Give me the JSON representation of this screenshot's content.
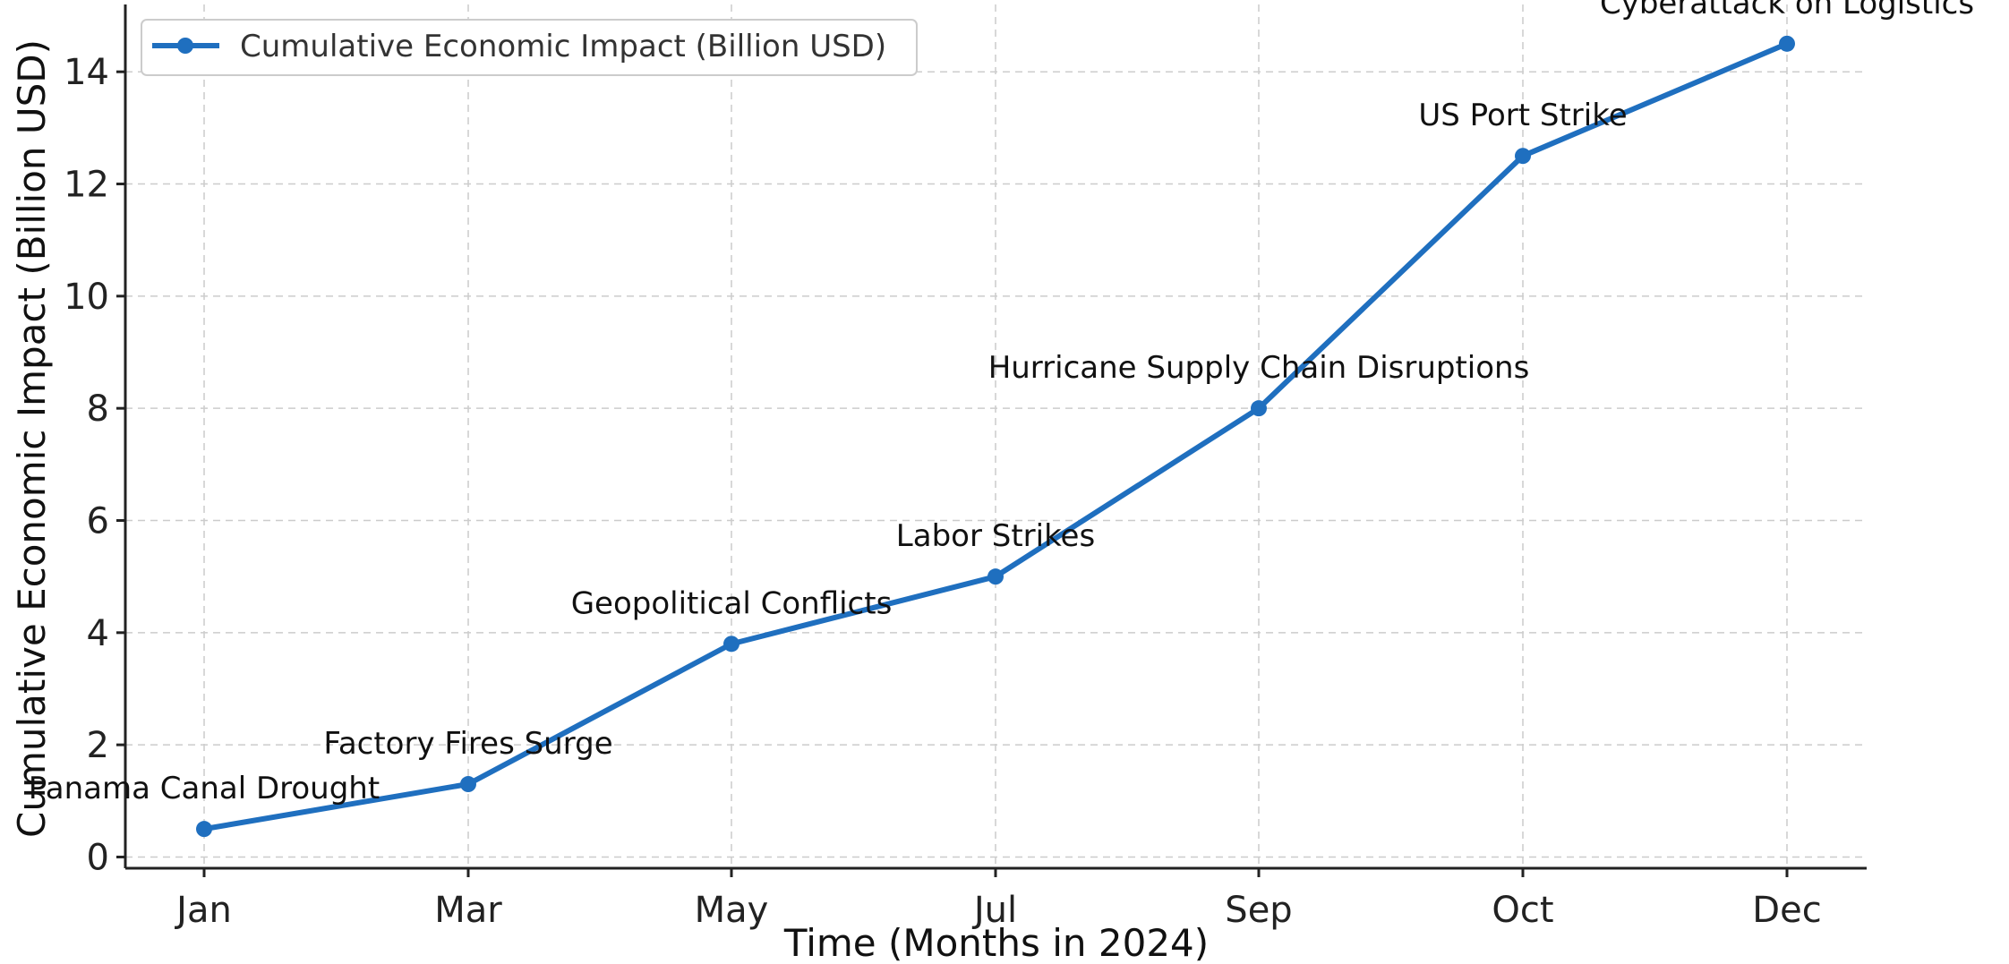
{
  "chart_data": {
    "type": "line",
    "title": "",
    "xlabel": "Time (Months in 2024)",
    "ylabel": "Cumulative Economic Impact (Billion USD)",
    "categories": [
      "Jan",
      "Mar",
      "May",
      "Jul",
      "Sep",
      "Oct",
      "Dec"
    ],
    "series": [
      {
        "name": "Cumulative Economic Impact (Billion USD)",
        "color": "#1f6fbf",
        "values": [
          0.5,
          1.3,
          3.8,
          5.0,
          8.0,
          12.5,
          14.5
        ]
      }
    ],
    "annotations": [
      "Panama Canal Drought",
      "Factory Fires Surge",
      "Geopolitical Conflicts",
      "Labor Strikes",
      "Hurricane Supply Chain Disruptions",
      "US Port Strike",
      "Cyberattack on Logistics"
    ],
    "yticks": [
      0,
      2,
      4,
      6,
      8,
      10,
      12,
      14
    ],
    "ylim": [
      -0.2,
      15.2
    ],
    "grid": true,
    "legend_position": "top-left"
  }
}
